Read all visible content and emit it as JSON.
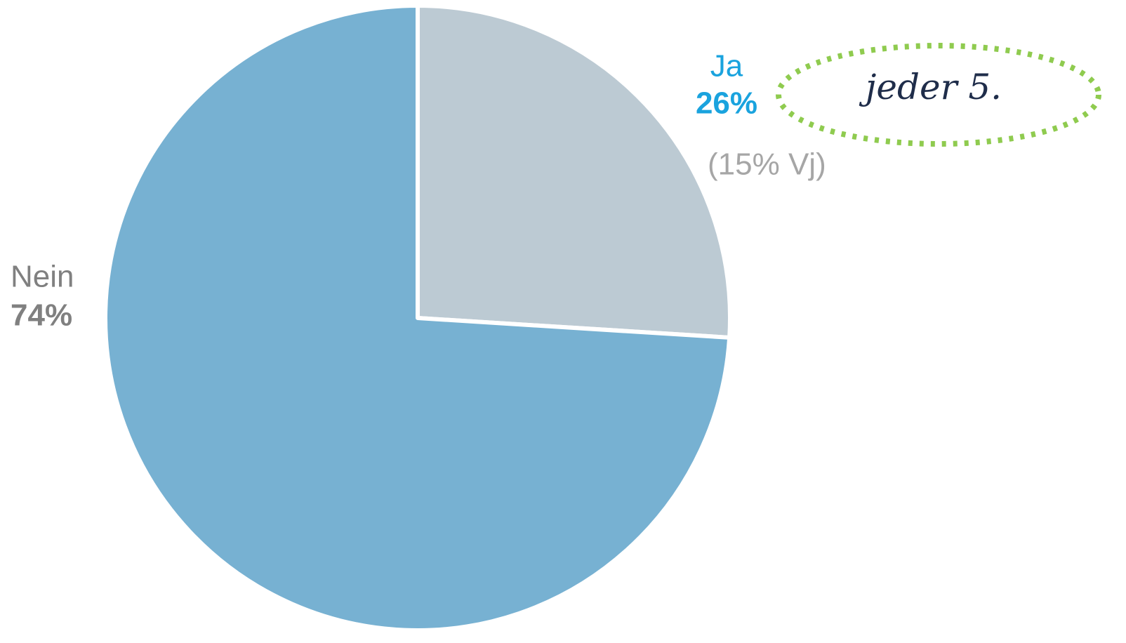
{
  "chart_data": {
    "type": "pie",
    "categories": [
      "Ja",
      "Nein"
    ],
    "values": [
      26,
      74
    ],
    "value_labels": [
      "26%",
      "74%"
    ],
    "colors": [
      "#bccad3",
      "#77b1d2"
    ],
    "label_colors": [
      "#1aa3de",
      "#808080"
    ],
    "annotations": [
      "(15% Vj)",
      "jeder 5."
    ]
  }
}
